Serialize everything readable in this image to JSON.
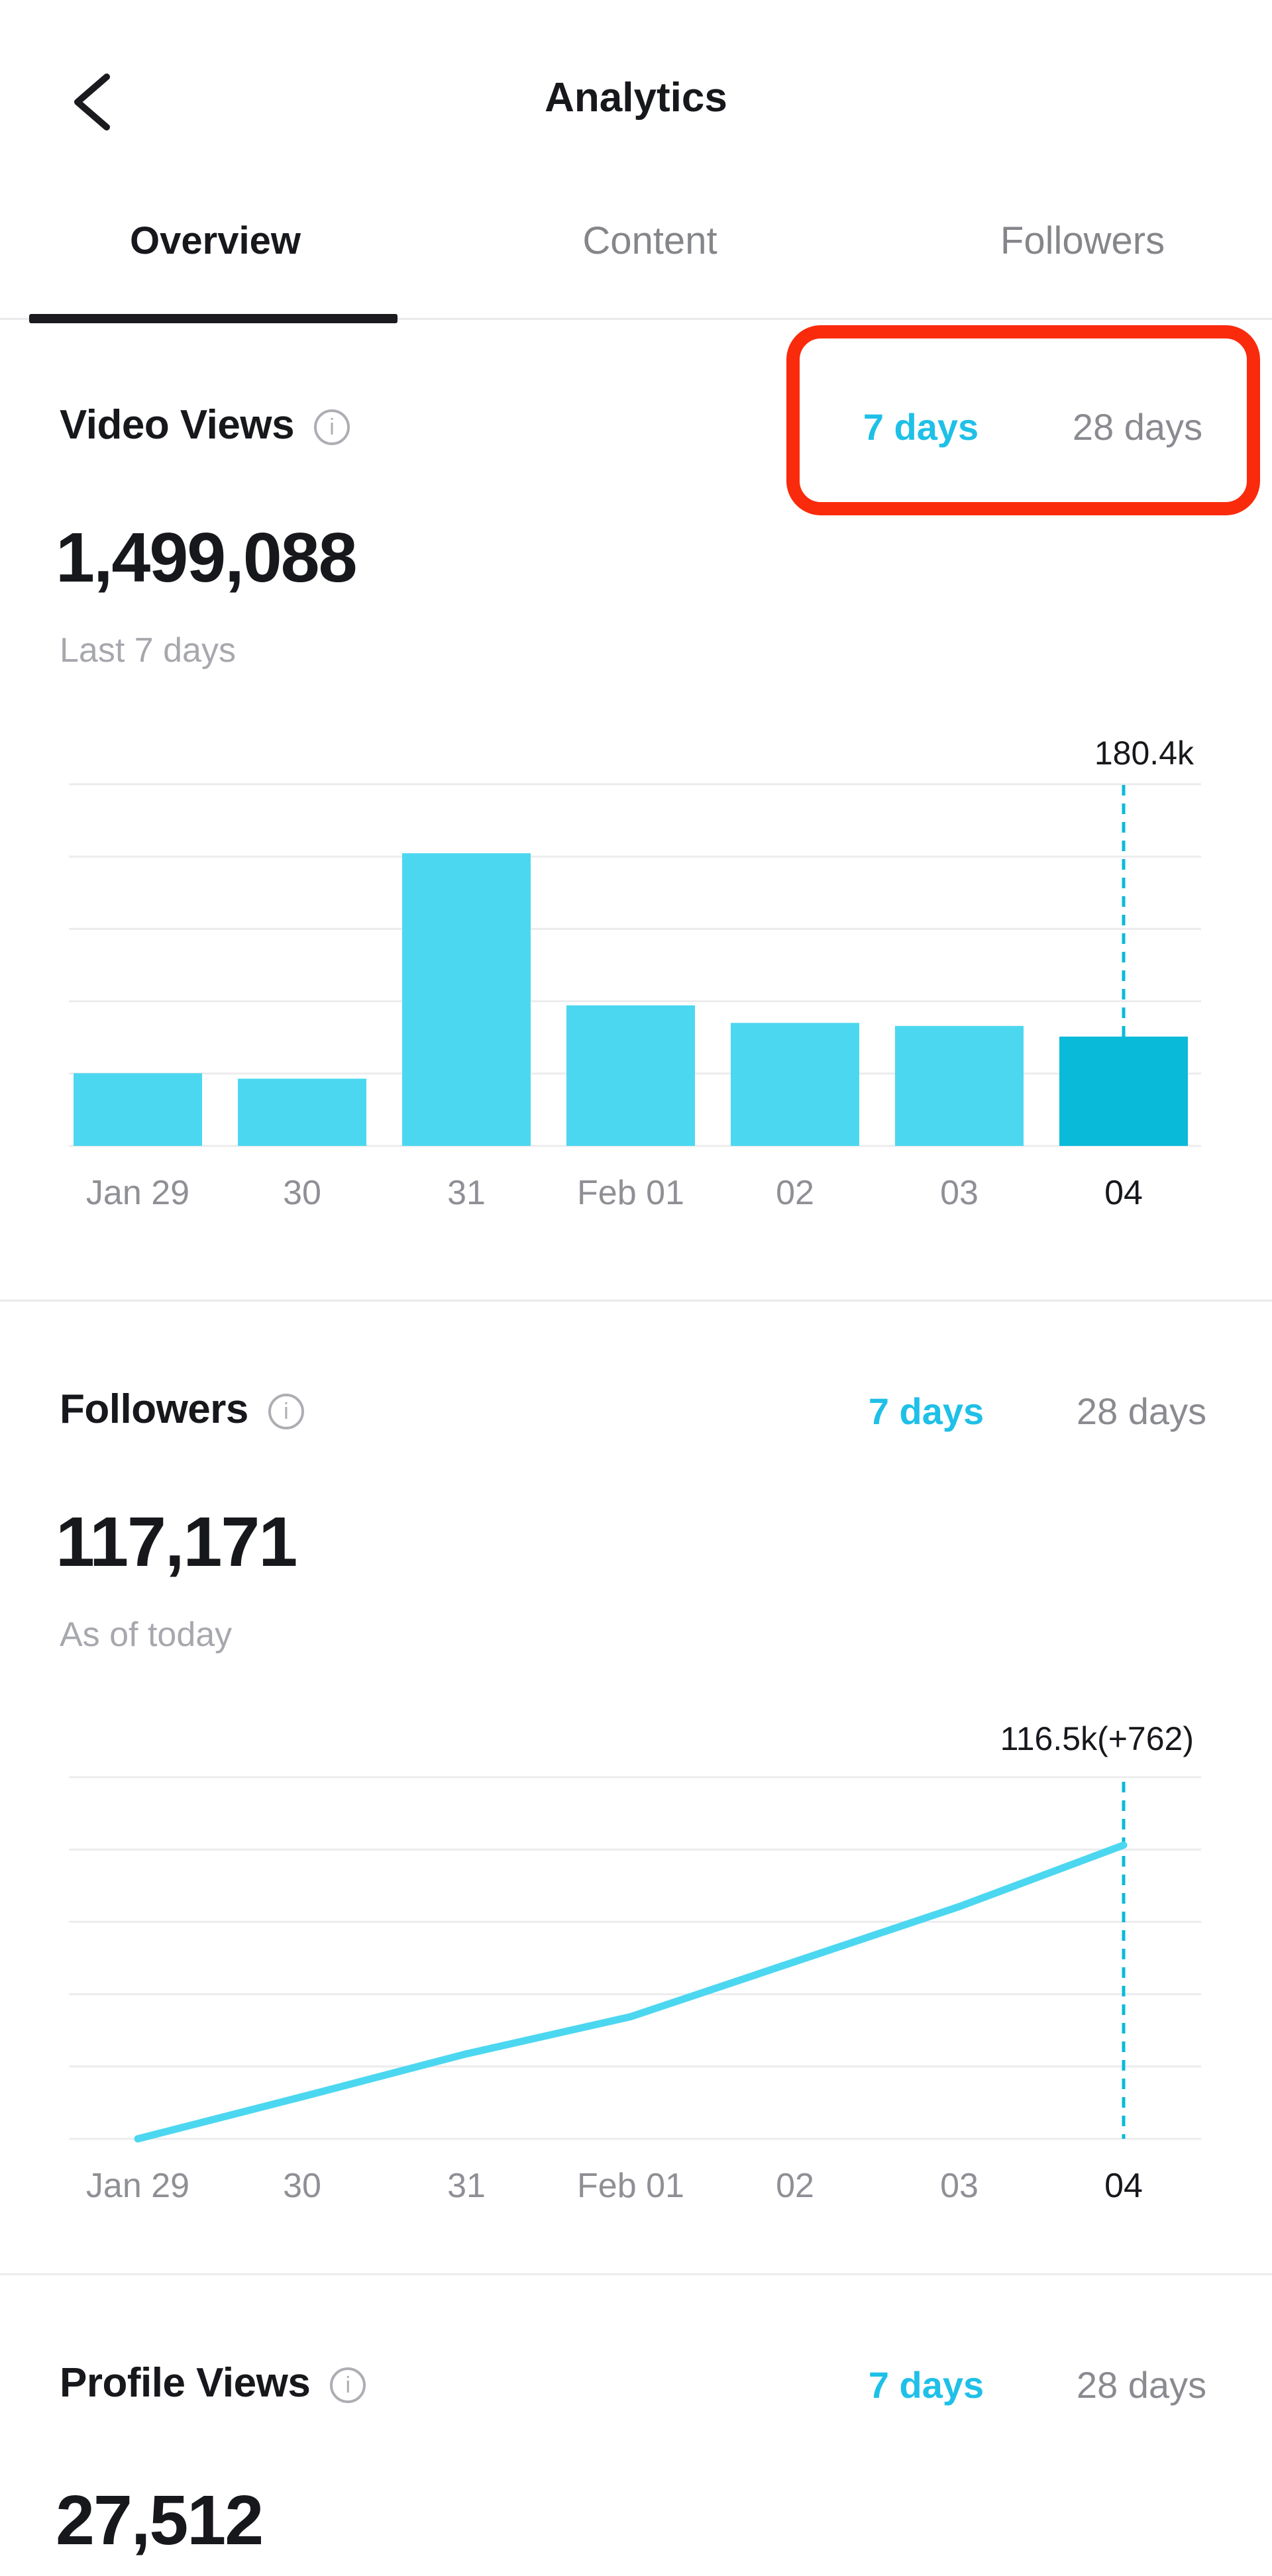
{
  "header": {
    "title": "Analytics",
    "back_icon": "chevron-left-icon"
  },
  "tabs": [
    {
      "label": "Overview",
      "active": true
    },
    {
      "label": "Content",
      "active": false
    },
    {
      "label": "Followers",
      "active": false
    }
  ],
  "colors": {
    "accent_text_cyan": "#1FC0E7",
    "bar": "#4CD7F0",
    "bar_selected": "#0ABAD9",
    "line": "#4CD7F0",
    "dashed_marker": "#0ABAD9",
    "grid": "#ECECEE",
    "dark_text": "#17181C",
    "gray_text": "#8F9095",
    "red_annotation": "#FA2A0C"
  },
  "sections": {
    "video_views": {
      "title": "Video Views",
      "info_icon": "info-icon",
      "range_7": "7 days",
      "range_28": "28 days",
      "selected_range": "7 days",
      "value": "1,499,088",
      "caption": "Last 7 days",
      "annotation": "180.4k",
      "highlighted_by_red_box": true
    },
    "followers": {
      "title": "Followers",
      "info_icon": "info-icon",
      "range_7": "7 days",
      "range_28": "28 days",
      "selected_range": "7 days",
      "value": "117,171",
      "caption": "As of today",
      "annotation": "116.5k(+762)"
    },
    "profile_views": {
      "title": "Profile Views",
      "info_icon": "info-icon",
      "range_7": "7 days",
      "range_28": "28 days",
      "selected_range": "7 days",
      "value": "27,512"
    }
  },
  "chart_data": [
    {
      "type": "bar",
      "title": "Video Views — last 7 days (daily views)",
      "categories": [
        "Jan 29",
        "30",
        "31",
        "Feb 01",
        "02",
        "03",
        "04"
      ],
      "values": [
        120000,
        111000,
        483000,
        232000,
        203000,
        198000,
        180400
      ],
      "selected_index": 6,
      "selected_label": "180.4k",
      "xlabel": "",
      "ylabel": "views",
      "ylim": [
        0,
        634000
      ],
      "grid": true,
      "legend": "none"
    },
    {
      "type": "line",
      "title": "Followers — last 7 days (total followers)",
      "categories": [
        "Jan 29",
        "30",
        "31",
        "Feb 01",
        "02",
        "03",
        "04"
      ],
      "values": [
        112870,
        113390,
        113920,
        114380,
        115060,
        115740,
        116500
      ],
      "selected_index": 6,
      "selected_label": "116.5k(+762)",
      "xlabel": "",
      "ylabel": "followers",
      "ylim": [
        112870,
        117340
      ],
      "grid": true,
      "legend": "none"
    }
  ]
}
